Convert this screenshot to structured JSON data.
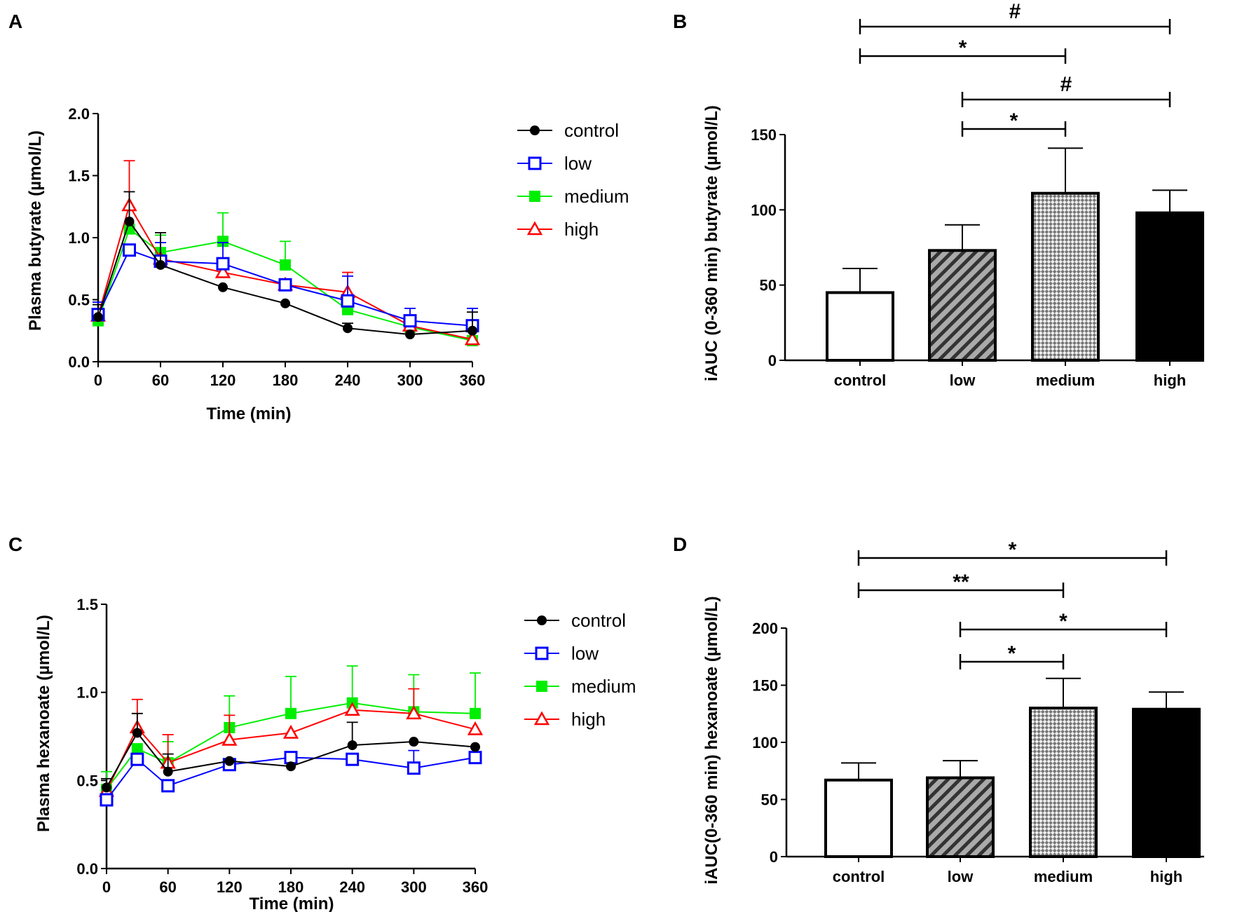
{
  "panels": [
    {
      "letter": "A"
    },
    {
      "letter": "B"
    },
    {
      "letter": "C"
    },
    {
      "letter": "D"
    }
  ],
  "groups": [
    {
      "name": "control",
      "color": "#000000"
    },
    {
      "name": "low",
      "color": "#0000ff"
    },
    {
      "name": "medium",
      "color": "#00ee00"
    },
    {
      "name": "high",
      "color": "#ff0000"
    }
  ],
  "chart_data": [
    {
      "type": "line",
      "panel": "A",
      "xlabel": "Time (min)",
      "ylabel": "Plasma butyrate (µmol/L)",
      "x": [
        0,
        30,
        60,
        120,
        180,
        240,
        300,
        360
      ],
      "xticks": [
        0,
        60,
        120,
        180,
        240,
        300,
        360
      ],
      "yticks": [
        "0.0",
        "0.5",
        "1.0",
        "1.5",
        "2.0"
      ],
      "ylim": [
        0,
        2
      ],
      "series": [
        {
          "name": "control",
          "values": [
            0.36,
            1.13,
            0.78,
            0.6,
            0.47,
            0.27,
            0.22,
            0.25
          ],
          "errors": [
            0.1,
            0.24,
            0.26,
            0.0,
            0.0,
            0.04,
            0.0,
            0.15
          ]
        },
        {
          "name": "low",
          "values": [
            0.38,
            0.9,
            0.81,
            0.79,
            0.62,
            0.49,
            0.33,
            0.29
          ],
          "errors": [
            0.1,
            0.0,
            0.15,
            0.17,
            0.0,
            0.2,
            0.1,
            0.14
          ]
        },
        {
          "name": "medium",
          "values": [
            0.33,
            1.07,
            0.88,
            0.97,
            0.78,
            0.42,
            0.28,
            0.17
          ],
          "errors": [
            0.0,
            0.0,
            0.14,
            0.23,
            0.19,
            0.0,
            0.0,
            0.0
          ]
        },
        {
          "name": "high",
          "values": [
            0.37,
            1.26,
            0.83,
            0.72,
            0.62,
            0.56,
            0.29,
            0.18
          ],
          "errors": [
            0.0,
            0.36,
            0.0,
            0.0,
            0.0,
            0.16,
            0.0,
            0.0
          ]
        }
      ]
    },
    {
      "type": "bar",
      "panel": "B",
      "ylabel": "iAUC (0-360 min) butyrate (µmol/L)",
      "categories": [
        "control",
        "low",
        "medium",
        "high"
      ],
      "values": [
        45,
        73,
        111,
        98
      ],
      "errors": [
        16,
        17,
        30,
        15
      ],
      "yticks": [
        "0",
        "50",
        "100",
        "150"
      ],
      "ylim": [
        0,
        150
      ],
      "comparisons": [
        {
          "from": 0,
          "to": 3,
          "label": "#"
        },
        {
          "from": 0,
          "to": 2,
          "label": "*"
        },
        {
          "from": 1,
          "to": 3,
          "label": "#"
        },
        {
          "from": 1,
          "to": 2,
          "label": "*"
        }
      ]
    },
    {
      "type": "line",
      "panel": "C",
      "xlabel": "Time (min)",
      "ylabel": "Plasma hexanoate (µmol/L)",
      "x": [
        0,
        30,
        60,
        120,
        180,
        240,
        300,
        360
      ],
      "xticks": [
        0,
        60,
        120,
        180,
        240,
        300,
        360
      ],
      "yticks": [
        "0.0",
        "0.5",
        "1.0",
        "1.5"
      ],
      "ylim": [
        0,
        1.5
      ],
      "series": [
        {
          "name": "control",
          "values": [
            0.46,
            0.77,
            0.55,
            0.61,
            0.58,
            0.7,
            0.72,
            0.69
          ],
          "errors": [
            0.05,
            0.11,
            0.1,
            0.0,
            0.0,
            0.13,
            0.0,
            0.0
          ]
        },
        {
          "name": "low",
          "values": [
            0.39,
            0.62,
            0.47,
            0.59,
            0.63,
            0.62,
            0.57,
            0.63
          ],
          "errors": [
            0.0,
            0.0,
            0.0,
            0.0,
            0.0,
            0.0,
            0.1,
            0.0
          ]
        },
        {
          "name": "medium",
          "values": [
            0.45,
            0.68,
            0.6,
            0.8,
            0.88,
            0.94,
            0.89,
            0.88
          ],
          "errors": [
            0.1,
            0.0,
            0.12,
            0.18,
            0.21,
            0.21,
            0.21,
            0.23
          ]
        },
        {
          "name": "high",
          "values": [
            0.44,
            0.8,
            0.6,
            0.73,
            0.77,
            0.9,
            0.88,
            0.79
          ],
          "errors": [
            0.0,
            0.16,
            0.16,
            0.14,
            0.0,
            0.0,
            0.14,
            0.0
          ]
        }
      ]
    },
    {
      "type": "bar",
      "panel": "D",
      "ylabel": "iAUC(0-360 min) hexanoate (µmol/L)",
      "categories": [
        "control",
        "low",
        "medium",
        "high"
      ],
      "values": [
        67,
        69,
        130,
        129
      ],
      "errors": [
        15,
        15,
        26,
        15
      ],
      "yticks": [
        "0",
        "50",
        "100",
        "150",
        "200"
      ],
      "ylim": [
        0,
        200
      ],
      "comparisons": [
        {
          "from": 0,
          "to": 3,
          "label": "*"
        },
        {
          "from": 0,
          "to": 2,
          "label": "**"
        },
        {
          "from": 1,
          "to": 3,
          "label": "*"
        },
        {
          "from": 1,
          "to": 2,
          "label": "*"
        }
      ]
    }
  ]
}
